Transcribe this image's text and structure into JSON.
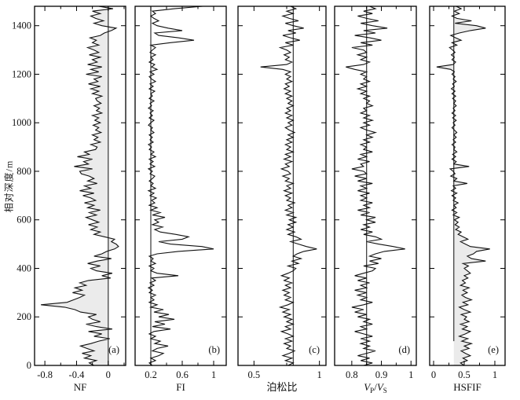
{
  "chart_data": {
    "type": "line",
    "orientation": "depth-logs-vertical",
    "title": "",
    "grid": false,
    "legend": "none",
    "y_axis": {
      "label": "相对深度/m",
      "lim": [
        0,
        1480
      ],
      "major_ticks": [
        0,
        200,
        400,
        600,
        800,
        1000,
        1200,
        1400
      ],
      "major_tick_labels": [
        "0",
        "200",
        "400",
        "600",
        "800",
        "1000",
        "1200",
        "1400"
      ]
    },
    "depth_start": 0,
    "depth_step": 10,
    "line_color": "#111111",
    "ref_line_color": "#333333",
    "fill_color": "#ebebeb",
    "panels": [
      {
        "id": "a",
        "letter": "(a)",
        "xlabel": "NF",
        "xlim": [
          -0.93,
          0.22
        ],
        "x_major": [
          {
            "v": -0.8,
            "l": "-0.8"
          },
          {
            "v": -0.4,
            "l": "-0.4"
          },
          {
            "v": 0,
            "l": "0"
          }
        ],
        "x_minor": [
          -0.6,
          -0.2,
          0.2
        ],
        "ref": 0,
        "ref_depth_span": [
          0,
          1480
        ],
        "fill": true,
        "values": [
          -0.18,
          -0.24,
          -0.15,
          -0.3,
          -0.22,
          -0.33,
          -0.18,
          -0.27,
          -0.35,
          -0.22,
          -0.12,
          0.02,
          -0.18,
          -0.08,
          -0.25,
          0.05,
          -0.15,
          -0.28,
          -0.1,
          -0.2,
          -0.25,
          -0.15,
          -0.35,
          -0.42,
          -0.55,
          -0.85,
          -0.52,
          -0.44,
          -0.36,
          -0.3,
          -0.45,
          -0.33,
          -0.42,
          -0.28,
          -0.36,
          -0.25,
          0.03,
          -0.08,
          0.05,
          -0.15,
          -0.22,
          -0.1,
          -0.26,
          -0.14,
          0.04,
          -0.18,
          -0.08,
          -0.02,
          0.08,
          0.13,
          0.1,
          0.04,
          0.08,
          -0.05,
          -0.18,
          -0.1,
          -0.22,
          -0.14,
          -0.25,
          -0.12,
          -0.2,
          -0.28,
          -0.15,
          -0.24,
          -0.1,
          -0.26,
          -0.18,
          -0.3,
          -0.16,
          -0.22,
          -0.32,
          -0.18,
          -0.36,
          -0.22,
          -0.3,
          -0.14,
          -0.26,
          -0.18,
          -0.24,
          -0.34,
          -0.36,
          -0.2,
          -0.43,
          -0.25,
          -0.31,
          -0.2,
          -0.39,
          -0.24,
          -0.3,
          -0.16,
          -0.14,
          -0.22,
          -0.1,
          -0.18,
          -0.13,
          -0.2,
          -0.09,
          -0.16,
          -0.12,
          -0.19,
          -0.1,
          -0.17,
          -0.12,
          -0.2,
          -0.08,
          -0.15,
          -0.11,
          -0.18,
          -0.09,
          -0.14,
          -0.16,
          -0.08,
          -0.2,
          -0.12,
          -0.22,
          -0.1,
          -0.25,
          -0.13,
          -0.18,
          -0.08,
          -0.28,
          -0.12,
          -0.22,
          -0.08,
          -0.26,
          -0.14,
          -0.2,
          -0.1,
          -0.24,
          -0.12,
          -0.18,
          -0.26,
          -0.12,
          -0.2,
          -0.15,
          -0.23,
          -0.1,
          -0.05,
          0.04,
          0.1,
          -0.08,
          -0.18,
          -0.06,
          -0.16,
          -0.22,
          -0.1,
          -0.2,
          0.06,
          -0.12
        ]
      },
      {
        "id": "b",
        "letter": "(b)",
        "xlabel": "FI",
        "xlim": [
          0.0,
          1.16
        ],
        "x_major": [
          {
            "v": 0.2,
            "l": "0.2"
          },
          {
            "v": 0.6,
            "l": "0.6"
          },
          {
            "v": 1,
            "l": "1"
          }
        ],
        "x_minor": [
          0.4,
          0.8
        ],
        "ref": 0.2,
        "ref_depth_span": [
          0,
          1480
        ],
        "fill": false,
        "values": [
          0.22,
          0.18,
          0.26,
          0.2,
          0.3,
          0.36,
          0.22,
          0.28,
          0.42,
          0.25,
          0.32,
          0.2,
          0.26,
          0.18,
          0.24,
          0.45,
          0.22,
          0.38,
          0.25,
          0.5,
          0.3,
          0.43,
          0.24,
          0.36,
          0.2,
          0.28,
          0.18,
          0.24,
          0.2,
          0.26,
          0.18,
          0.22,
          0.17,
          0.24,
          0.19,
          0.26,
          0.21,
          0.55,
          0.28,
          0.2,
          0.24,
          0.18,
          0.26,
          0.2,
          0.23,
          0.18,
          0.28,
          0.55,
          1.0,
          0.85,
          0.45,
          0.3,
          0.6,
          0.68,
          0.52,
          0.32,
          0.25,
          0.35,
          0.22,
          0.3,
          0.25,
          0.38,
          0.22,
          0.32,
          0.2,
          0.28,
          0.18,
          0.25,
          0.21,
          0.27,
          0.19,
          0.24,
          0.17,
          0.26,
          0.2,
          0.23,
          0.18,
          0.22,
          0.25,
          0.19,
          0.22,
          0.17,
          0.25,
          0.19,
          0.23,
          0.18,
          0.26,
          0.2,
          0.24,
          0.18,
          0.21,
          0.17,
          0.23,
          0.19,
          0.22,
          0.18,
          0.24,
          0.2,
          0.22,
          0.17,
          0.2,
          0.24,
          0.18,
          0.22,
          0.19,
          0.23,
          0.17,
          0.21,
          0.19,
          0.24,
          0.18,
          0.22,
          0.2,
          0.25,
          0.18,
          0.23,
          0.19,
          0.26,
          0.21,
          0.18,
          0.24,
          0.19,
          0.28,
          0.21,
          0.25,
          0.18,
          0.23,
          0.2,
          0.26,
          0.19,
          0.22,
          0.26,
          0.2,
          0.45,
          0.75,
          0.55,
          0.3,
          0.25,
          0.6,
          0.42,
          0.28,
          0.22,
          0.3,
          0.24,
          0.2,
          0.26,
          0.22,
          0.5,
          0.86
        ]
      },
      {
        "id": "c",
        "letter": "(c)",
        "xlabel": "泊松比",
        "xlim": [
          0.378,
          1.05
        ],
        "x_major": [
          {
            "v": 0.5,
            "l": "0.5"
          },
          {
            "v": 1,
            "l": "1"
          }
        ],
        "x_minor": [
          0.75
        ],
        "ref": 0.8,
        "ref_depth_span": [
          0,
          1480
        ],
        "fill": false,
        "values": [
          0.76,
          0.8,
          0.74,
          0.79,
          0.72,
          0.77,
          0.81,
          0.75,
          0.78,
          0.73,
          0.79,
          0.74,
          0.8,
          0.76,
          0.71,
          0.78,
          0.74,
          0.8,
          0.75,
          0.79,
          0.73,
          0.78,
          0.72,
          0.77,
          0.7,
          0.76,
          0.8,
          0.74,
          0.78,
          0.73,
          0.77,
          0.72,
          0.78,
          0.74,
          0.79,
          0.73,
          0.77,
          0.71,
          0.76,
          0.8,
          0.82,
          0.76,
          0.84,
          0.79,
          0.86,
          0.8,
          0.83,
          0.88,
          0.98,
          0.9,
          0.84,
          0.78,
          0.86,
          0.82,
          0.76,
          0.81,
          0.75,
          0.8,
          0.76,
          0.82,
          0.77,
          0.82,
          0.75,
          0.8,
          0.74,
          0.79,
          0.76,
          0.81,
          0.75,
          0.78,
          0.74,
          0.79,
          0.73,
          0.78,
          0.75,
          0.8,
          0.74,
          0.77,
          0.72,
          0.78,
          0.76,
          0.71,
          0.77,
          0.74,
          0.79,
          0.73,
          0.78,
          0.74,
          0.8,
          0.75,
          0.78,
          0.74,
          0.79,
          0.75,
          0.8,
          0.76,
          0.81,
          0.77,
          0.74,
          0.79,
          0.76,
          0.8,
          0.75,
          0.79,
          0.74,
          0.78,
          0.75,
          0.8,
          0.76,
          0.79,
          0.75,
          0.79,
          0.74,
          0.78,
          0.73,
          0.77,
          0.74,
          0.79,
          0.75,
          0.78,
          0.74,
          0.78,
          0.72,
          0.55,
          0.75,
          0.79,
          0.74,
          0.77,
          0.73,
          0.78,
          0.75,
          0.7,
          0.8,
          0.74,
          0.85,
          0.78,
          0.72,
          0.82,
          0.76,
          0.88,
          0.8,
          0.74,
          0.84,
          0.77,
          0.72,
          0.8,
          0.75,
          0.82,
          0.78
        ]
      },
      {
        "id": "d",
        "letter": "(d)",
        "xlabel": "VP/VS",
        "xlabel_rich": [
          [
            "V",
            "i"
          ],
          [
            "P",
            "s"
          ],
          [
            "/",
            ""
          ],
          [
            "V",
            "i"
          ],
          [
            "S",
            "s"
          ]
        ],
        "xlim": [
          0.742,
          1.018
        ],
        "x_major": [
          {
            "v": 0.8,
            "l": "0.8"
          },
          {
            "v": 0.9,
            "l": "0.9"
          },
          {
            "v": 1,
            "l": "1"
          }
        ],
        "x_minor": [
          0.85,
          0.95
        ],
        "ref": 0.85,
        "ref_depth_span": [
          0,
          1480
        ],
        "fill": false,
        "values": [
          0.84,
          0.87,
          0.83,
          0.86,
          0.82,
          0.85,
          0.88,
          0.84,
          0.86,
          0.83,
          0.86,
          0.83,
          0.87,
          0.84,
          0.81,
          0.85,
          0.83,
          0.87,
          0.84,
          0.86,
          0.82,
          0.85,
          0.81,
          0.84,
          0.8,
          0.84,
          0.87,
          0.83,
          0.85,
          0.82,
          0.85,
          0.81,
          0.85,
          0.83,
          0.86,
          0.82,
          0.85,
          0.81,
          0.84,
          0.87,
          0.88,
          0.84,
          0.89,
          0.86,
          0.9,
          0.86,
          0.88,
          0.91,
          0.98,
          0.94,
          0.89,
          0.85,
          0.9,
          0.88,
          0.84,
          0.87,
          0.83,
          0.86,
          0.84,
          0.88,
          0.85,
          0.88,
          0.83,
          0.86,
          0.82,
          0.86,
          0.84,
          0.87,
          0.83,
          0.85,
          0.83,
          0.86,
          0.82,
          0.85,
          0.83,
          0.87,
          0.82,
          0.85,
          0.81,
          0.85,
          0.84,
          0.8,
          0.84,
          0.83,
          0.86,
          0.82,
          0.85,
          0.83,
          0.87,
          0.84,
          0.85,
          0.83,
          0.86,
          0.84,
          0.87,
          0.85,
          0.88,
          0.85,
          0.83,
          0.86,
          0.84,
          0.87,
          0.84,
          0.86,
          0.83,
          0.85,
          0.84,
          0.87,
          0.85,
          0.86,
          0.84,
          0.86,
          0.83,
          0.85,
          0.82,
          0.85,
          0.83,
          0.86,
          0.84,
          0.85,
          0.83,
          0.85,
          0.81,
          0.78,
          0.84,
          0.86,
          0.83,
          0.85,
          0.82,
          0.85,
          0.84,
          0.8,
          0.87,
          0.83,
          0.9,
          0.86,
          0.81,
          0.88,
          0.84,
          0.92,
          0.87,
          0.83,
          0.89,
          0.85,
          0.82,
          0.87,
          0.84,
          0.88,
          0.86
        ]
      },
      {
        "id": "e",
        "letter": "(e)",
        "xlabel": "HSFIF",
        "xlim": [
          -0.064,
          1.167
        ],
        "x_major": [
          {
            "v": 0,
            "l": "0"
          },
          {
            "v": 0.5,
            "l": "0.5"
          },
          {
            "v": 1,
            "l": "1"
          }
        ],
        "x_minor": [
          0.25,
          0.75
        ],
        "ref": 0.33,
        "ref_depth_span": [
          100,
          1480
        ],
        "fill": true,
        "values": [
          0.5,
          0.44,
          0.55,
          0.48,
          0.6,
          0.52,
          0.45,
          0.58,
          0.5,
          0.62,
          0.46,
          0.56,
          0.42,
          0.52,
          0.6,
          0.47,
          0.55,
          0.44,
          0.58,
          0.5,
          0.54,
          0.45,
          0.6,
          0.5,
          0.42,
          0.56,
          0.48,
          0.62,
          0.52,
          0.46,
          0.55,
          0.48,
          0.58,
          0.44,
          0.52,
          0.47,
          0.56,
          0.5,
          0.6,
          0.55,
          0.5,
          0.57,
          0.48,
          0.85,
          0.62,
          0.55,
          0.65,
          0.7,
          0.92,
          0.6,
          0.52,
          0.44,
          0.56,
          0.48,
          0.4,
          0.45,
          0.36,
          0.42,
          0.35,
          0.4,
          0.34,
          0.42,
          0.32,
          0.38,
          0.3,
          0.37,
          0.33,
          0.4,
          0.32,
          0.36,
          0.3,
          0.38,
          0.29,
          0.36,
          0.32,
          0.55,
          0.33,
          0.38,
          0.28,
          0.35,
          0.32,
          0.27,
          0.58,
          0.33,
          0.37,
          0.3,
          0.36,
          0.31,
          0.38,
          0.33,
          0.35,
          0.3,
          0.36,
          0.32,
          0.37,
          0.33,
          0.38,
          0.34,
          0.3,
          0.35,
          0.32,
          0.37,
          0.31,
          0.36,
          0.3,
          0.35,
          0.32,
          0.37,
          0.33,
          0.36,
          0.31,
          0.36,
          0.3,
          0.35,
          0.29,
          0.34,
          0.31,
          0.37,
          0.32,
          0.35,
          0.3,
          0.34,
          0.28,
          0.05,
          0.32,
          0.36,
          0.3,
          0.34,
          0.29,
          0.35,
          0.31,
          0.26,
          0.38,
          0.3,
          0.45,
          0.36,
          0.28,
          0.42,
          0.6,
          0.85,
          0.7,
          0.35,
          0.62,
          0.38,
          0.3,
          0.42,
          0.34,
          0.45,
          0.37
        ]
      }
    ]
  }
}
